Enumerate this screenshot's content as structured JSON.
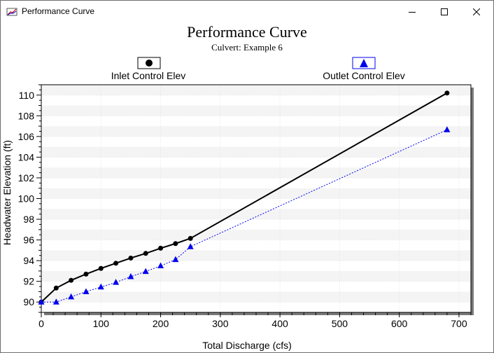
{
  "window": {
    "title": "Performance Curve",
    "controls": [
      "minimize",
      "maximize",
      "close"
    ]
  },
  "chart_data": {
    "type": "line",
    "title": "Performance Curve",
    "subtitle": "Culvert: Example 6",
    "xlabel": "Total Discharge (cfs)",
    "ylabel": "Headwater Elevation (ft)",
    "xlim": [
      0,
      720
    ],
    "ylim": [
      89,
      111
    ],
    "xticks": [
      0,
      100,
      200,
      300,
      400,
      500,
      600,
      700
    ],
    "yticks": [
      90,
      92,
      94,
      96,
      98,
      100,
      102,
      104,
      106,
      108,
      110
    ],
    "grid": true,
    "legend_position": "top",
    "series": [
      {
        "name": "Inlet Control Elev",
        "color": "#000000",
        "marker": "circle",
        "line": "solid",
        "x": [
          0,
          25,
          50,
          75,
          100,
          125,
          150,
          175,
          200,
          225,
          250,
          680
        ],
        "y": [
          90.0,
          91.35,
          92.1,
          92.7,
          93.25,
          93.75,
          94.25,
          94.7,
          95.2,
          95.65,
          96.15,
          110.2
        ]
      },
      {
        "name": "Outlet Control Elev",
        "color": "#0000ee",
        "marker": "triangle",
        "line": "dotted",
        "x": [
          0,
          25,
          50,
          75,
          100,
          125,
          150,
          175,
          200,
          225,
          250,
          680
        ],
        "y": [
          90.0,
          90.0,
          90.5,
          91.0,
          91.45,
          91.9,
          92.45,
          92.95,
          93.5,
          94.1,
          95.35,
          106.65
        ]
      }
    ]
  }
}
